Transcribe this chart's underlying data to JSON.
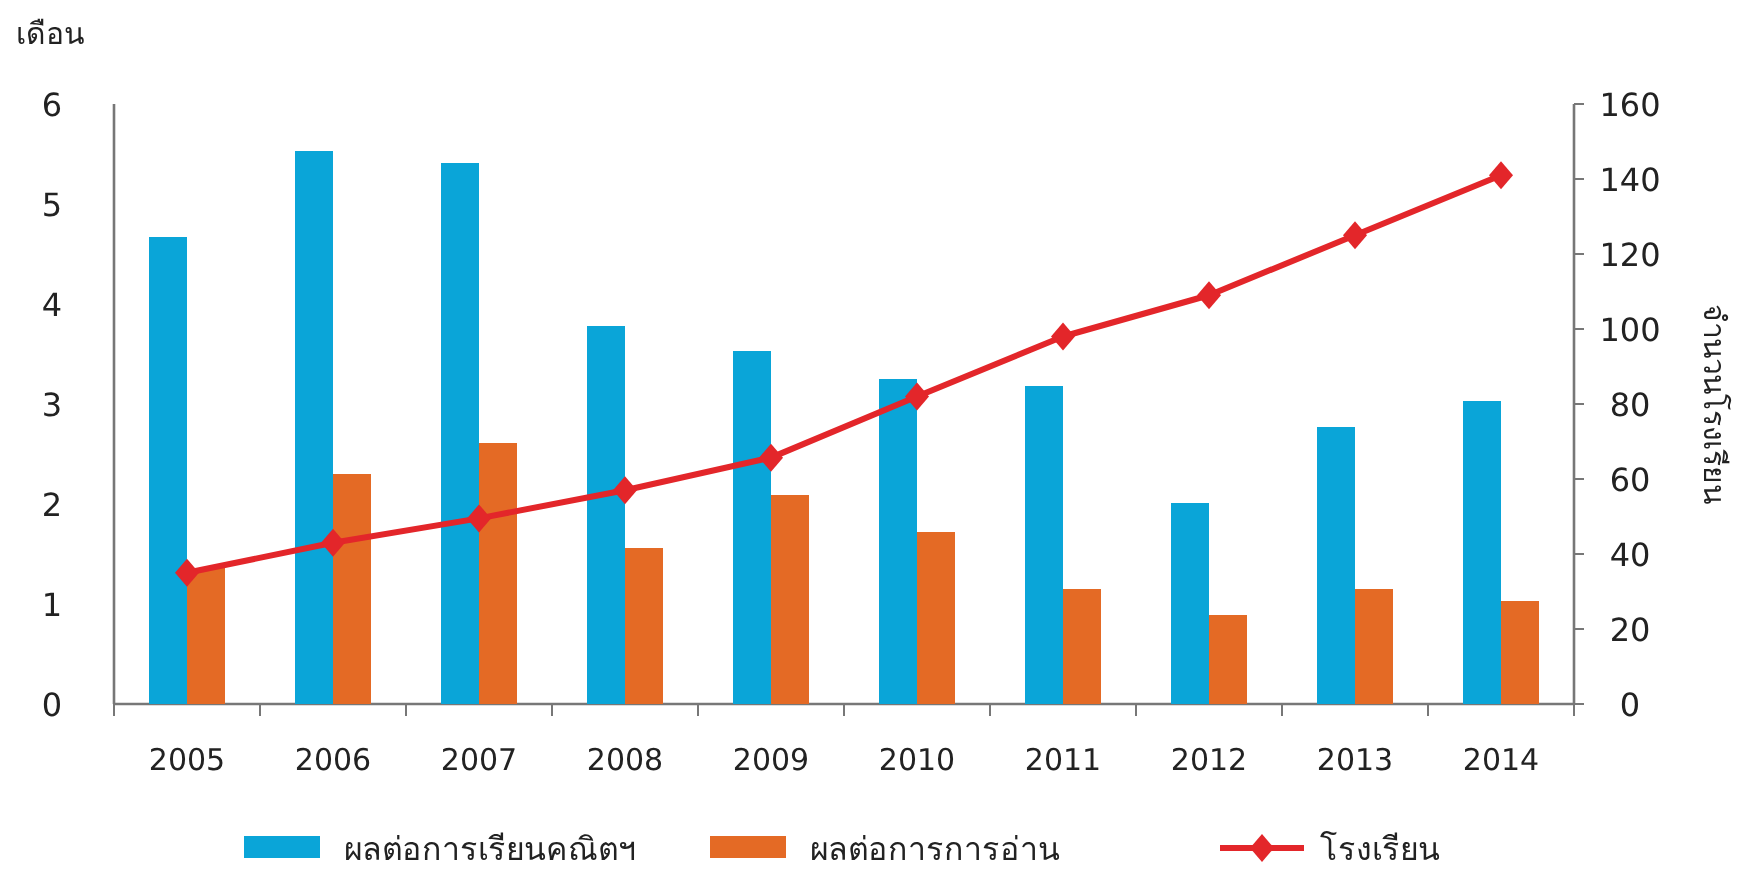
{
  "chart_data": {
    "type": "bar",
    "ylabel": "เดือน",
    "y2label": "จำนวนโรงเรียน",
    "categories": [
      "2005",
      "2006",
      "2007",
      "2008",
      "2009",
      "2010",
      "2011",
      "2012",
      "2013",
      "2014"
    ],
    "series": [
      {
        "name": "ผลต่อการเรียนคณิตฯ",
        "color": "#0aa5d8",
        "values": [
          4.67,
          5.53,
          5.41,
          3.78,
          3.53,
          3.25,
          3.18,
          2.01,
          2.77,
          3.03
        ]
      },
      {
        "name": "ผลต่อการการอ่าน",
        "color": "#e46a25",
        "values": [
          1.36,
          2.3,
          2.61,
          1.56,
          2.09,
          1.72,
          1.15,
          0.89,
          1.15,
          1.03
        ]
      },
      {
        "name": "โรงเรียน",
        "type": "line",
        "axis": "y2",
        "color": "#e3262a",
        "marker": "diamond",
        "values": [
          35,
          43,
          49.5,
          57,
          65.7,
          82,
          98,
          109,
          125,
          141
        ]
      }
    ],
    "ylim": [
      0,
      6
    ],
    "yticks": [
      0,
      1,
      2,
      3,
      4,
      5,
      6
    ],
    "y2lim": [
      0,
      160
    ],
    "y2ticks": [
      0,
      20,
      40,
      60,
      80,
      100,
      120,
      140,
      160
    ],
    "legend": "bottom"
  }
}
